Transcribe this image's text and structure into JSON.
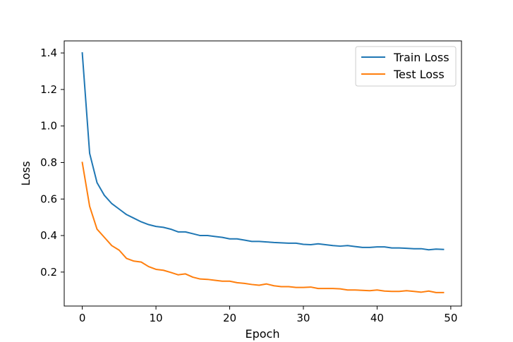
{
  "chart_data": {
    "type": "line",
    "title": "",
    "xlabel": "Epoch",
    "ylabel": "Loss",
    "xlim": [
      -2.45,
      51.45
    ],
    "ylim": [
      0.014,
      1.466
    ],
    "xticks": [
      0,
      10,
      20,
      30,
      40,
      50
    ],
    "yticks": [
      0.2,
      0.4,
      0.6,
      0.8,
      1.0,
      1.2,
      1.4
    ],
    "xtick_labels": [
      "0",
      "10",
      "20",
      "30",
      "40",
      "50"
    ],
    "ytick_labels": [
      "0.2",
      "0.4",
      "0.6",
      "0.8",
      "1.0",
      "1.2",
      "1.4"
    ],
    "grid": false,
    "legend": "top-right",
    "x": [
      0,
      1,
      2,
      3,
      4,
      5,
      6,
      7,
      8,
      9,
      10,
      11,
      12,
      13,
      14,
      15,
      16,
      17,
      18,
      19,
      20,
      21,
      22,
      23,
      24,
      25,
      26,
      27,
      28,
      29,
      30,
      31,
      32,
      33,
      34,
      35,
      36,
      37,
      38,
      39,
      40,
      41,
      42,
      43,
      44,
      45,
      46,
      47,
      48,
      49
    ],
    "series": [
      {
        "name": "Train Loss",
        "color": "#1f77b4",
        "values": [
          1.4,
          0.85,
          0.69,
          0.62,
          0.575,
          0.545,
          0.515,
          0.495,
          0.475,
          0.46,
          0.45,
          0.445,
          0.435,
          0.42,
          0.42,
          0.41,
          0.4,
          0.4,
          0.395,
          0.39,
          0.382,
          0.382,
          0.375,
          0.368,
          0.368,
          0.365,
          0.362,
          0.36,
          0.358,
          0.358,
          0.352,
          0.35,
          0.355,
          0.35,
          0.345,
          0.342,
          0.345,
          0.34,
          0.335,
          0.335,
          0.338,
          0.338,
          0.332,
          0.332,
          0.33,
          0.328,
          0.328,
          0.322,
          0.326,
          0.324
        ]
      },
      {
        "name": "Test Loss",
        "color": "#ff7f0e",
        "values": [
          0.8,
          0.56,
          0.435,
          0.39,
          0.345,
          0.32,
          0.275,
          0.26,
          0.255,
          0.23,
          0.215,
          0.21,
          0.198,
          0.185,
          0.19,
          0.172,
          0.162,
          0.16,
          0.155,
          0.15,
          0.15,
          0.142,
          0.138,
          0.132,
          0.128,
          0.135,
          0.125,
          0.12,
          0.12,
          0.116,
          0.116,
          0.118,
          0.11,
          0.11,
          0.11,
          0.108,
          0.102,
          0.102,
          0.1,
          0.098,
          0.102,
          0.096,
          0.094,
          0.094,
          0.098,
          0.094,
          0.09,
          0.096,
          0.088,
          0.088
        ]
      }
    ]
  }
}
